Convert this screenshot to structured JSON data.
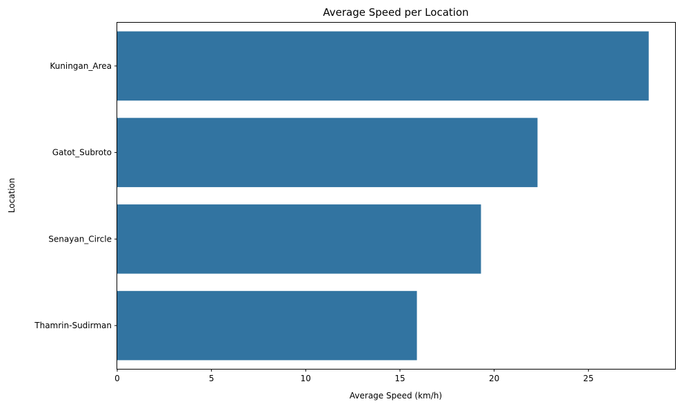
{
  "chart_data": {
    "type": "bar",
    "orientation": "horizontal",
    "title": "Average Speed per Location",
    "xlabel": "Average Speed (km/h)",
    "ylabel": "Location",
    "categories": [
      "Kuningan_Area",
      "Gatot_Subroto",
      "Senayan_Circle",
      "Thamrin-Sudirman"
    ],
    "values": [
      28.2,
      22.3,
      19.3,
      15.9
    ],
    "xlim": [
      0,
      29.6
    ],
    "xticks": [
      0,
      5,
      10,
      15,
      20,
      25
    ],
    "grid": false,
    "bar_color": "#3274a1"
  }
}
